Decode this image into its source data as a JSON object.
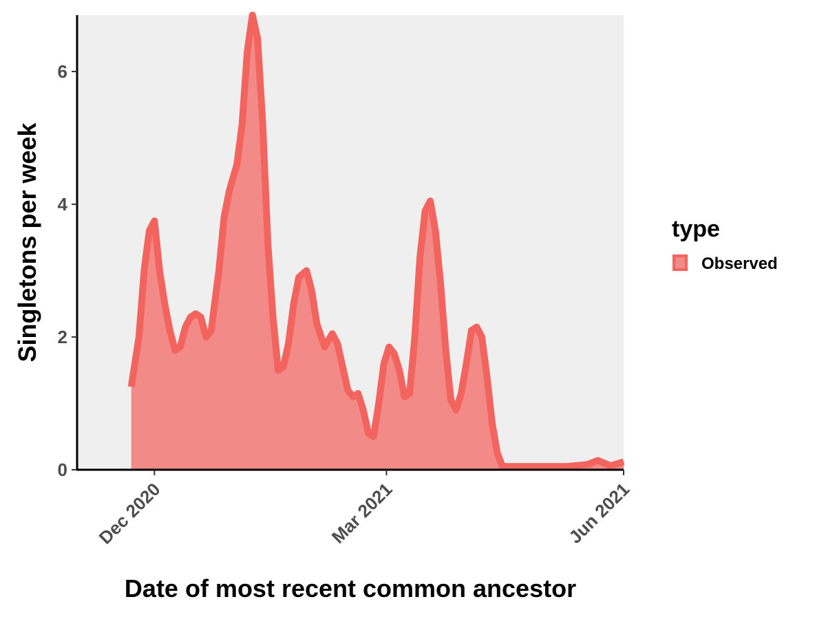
{
  "chart_data": {
    "type": "area",
    "xlabel": "Date of most recent common ancestor",
    "ylabel": "Singletons per week",
    "x_ticks": [
      {
        "date": "2020-12-01",
        "label": "Dec 2020"
      },
      {
        "date": "2021-03-01",
        "label": "Mar 2021"
      },
      {
        "date": "2021-06-01",
        "label": "Jun 2021"
      }
    ],
    "y_ticks": [
      0,
      2,
      4,
      6
    ],
    "xlim": [
      "2020-11-01",
      "2021-06-01"
    ],
    "ylim": [
      0,
      6.85
    ],
    "legend": {
      "title": "type",
      "position": "right"
    },
    "grid": false,
    "series": [
      {
        "name": "Observed",
        "fill_color": "#F28B87",
        "line_color": "#F4645F",
        "points": [
          [
            "2020-11-22",
            1.25
          ],
          [
            "2020-11-25",
            2.0
          ],
          [
            "2020-11-27",
            3.0
          ],
          [
            "2020-11-29",
            3.6
          ],
          [
            "2020-12-01",
            3.75
          ],
          [
            "2020-12-03",
            3.0
          ],
          [
            "2020-12-05",
            2.5
          ],
          [
            "2020-12-07",
            2.1
          ],
          [
            "2020-12-09",
            1.8
          ],
          [
            "2020-12-11",
            1.85
          ],
          [
            "2020-12-13",
            2.15
          ],
          [
            "2020-12-15",
            2.3
          ],
          [
            "2020-12-17",
            2.35
          ],
          [
            "2020-12-19",
            2.3
          ],
          [
            "2020-12-21",
            2.0
          ],
          [
            "2020-12-23",
            2.1
          ],
          [
            "2020-12-26",
            3.0
          ],
          [
            "2020-12-28",
            3.8
          ],
          [
            "2020-12-30",
            4.2
          ],
          [
            "2021-01-02",
            4.6
          ],
          [
            "2021-01-04",
            5.2
          ],
          [
            "2021-01-06",
            6.3
          ],
          [
            "2021-01-08",
            6.85
          ],
          [
            "2021-01-10",
            6.5
          ],
          [
            "2021-01-12",
            5.2
          ],
          [
            "2021-01-14",
            3.4
          ],
          [
            "2021-01-16",
            2.3
          ],
          [
            "2021-01-18",
            1.5
          ],
          [
            "2021-01-20",
            1.55
          ],
          [
            "2021-01-22",
            1.9
          ],
          [
            "2021-01-24",
            2.5
          ],
          [
            "2021-01-26",
            2.9
          ],
          [
            "2021-01-29",
            3.0
          ],
          [
            "2021-01-31",
            2.7
          ],
          [
            "2021-02-02",
            2.2
          ],
          [
            "2021-02-05",
            1.85
          ],
          [
            "2021-02-08",
            2.05
          ],
          [
            "2021-02-10",
            1.9
          ],
          [
            "2021-02-12",
            1.55
          ],
          [
            "2021-02-14",
            1.2
          ],
          [
            "2021-02-16",
            1.1
          ],
          [
            "2021-02-18",
            1.15
          ],
          [
            "2021-02-20",
            0.9
          ],
          [
            "2021-02-22",
            0.55
          ],
          [
            "2021-02-24",
            0.5
          ],
          [
            "2021-02-26",
            1.0
          ],
          [
            "2021-02-28",
            1.6
          ],
          [
            "2021-03-02",
            1.85
          ],
          [
            "2021-03-04",
            1.75
          ],
          [
            "2021-03-06",
            1.5
          ],
          [
            "2021-03-08",
            1.1
          ],
          [
            "2021-03-10",
            1.15
          ],
          [
            "2021-03-12",
            2.0
          ],
          [
            "2021-03-14",
            3.2
          ],
          [
            "2021-03-16",
            3.9
          ],
          [
            "2021-03-18",
            4.05
          ],
          [
            "2021-03-20",
            3.6
          ],
          [
            "2021-03-22",
            2.8
          ],
          [
            "2021-03-24",
            1.8
          ],
          [
            "2021-03-26",
            1.05
          ],
          [
            "2021-03-28",
            0.9
          ],
          [
            "2021-03-30",
            1.15
          ],
          [
            "2021-04-01",
            1.6
          ],
          [
            "2021-04-03",
            2.1
          ],
          [
            "2021-04-05",
            2.15
          ],
          [
            "2021-04-07",
            2.0
          ],
          [
            "2021-04-09",
            1.4
          ],
          [
            "2021-04-11",
            0.7
          ],
          [
            "2021-04-13",
            0.25
          ],
          [
            "2021-04-15",
            0.05
          ],
          [
            "2021-05-01",
            0.05
          ],
          [
            "2021-05-10",
            0.05
          ],
          [
            "2021-05-18",
            0.08
          ],
          [
            "2021-05-22",
            0.14
          ],
          [
            "2021-05-27",
            0.06
          ],
          [
            "2021-06-01",
            0.12
          ]
        ]
      }
    ]
  }
}
